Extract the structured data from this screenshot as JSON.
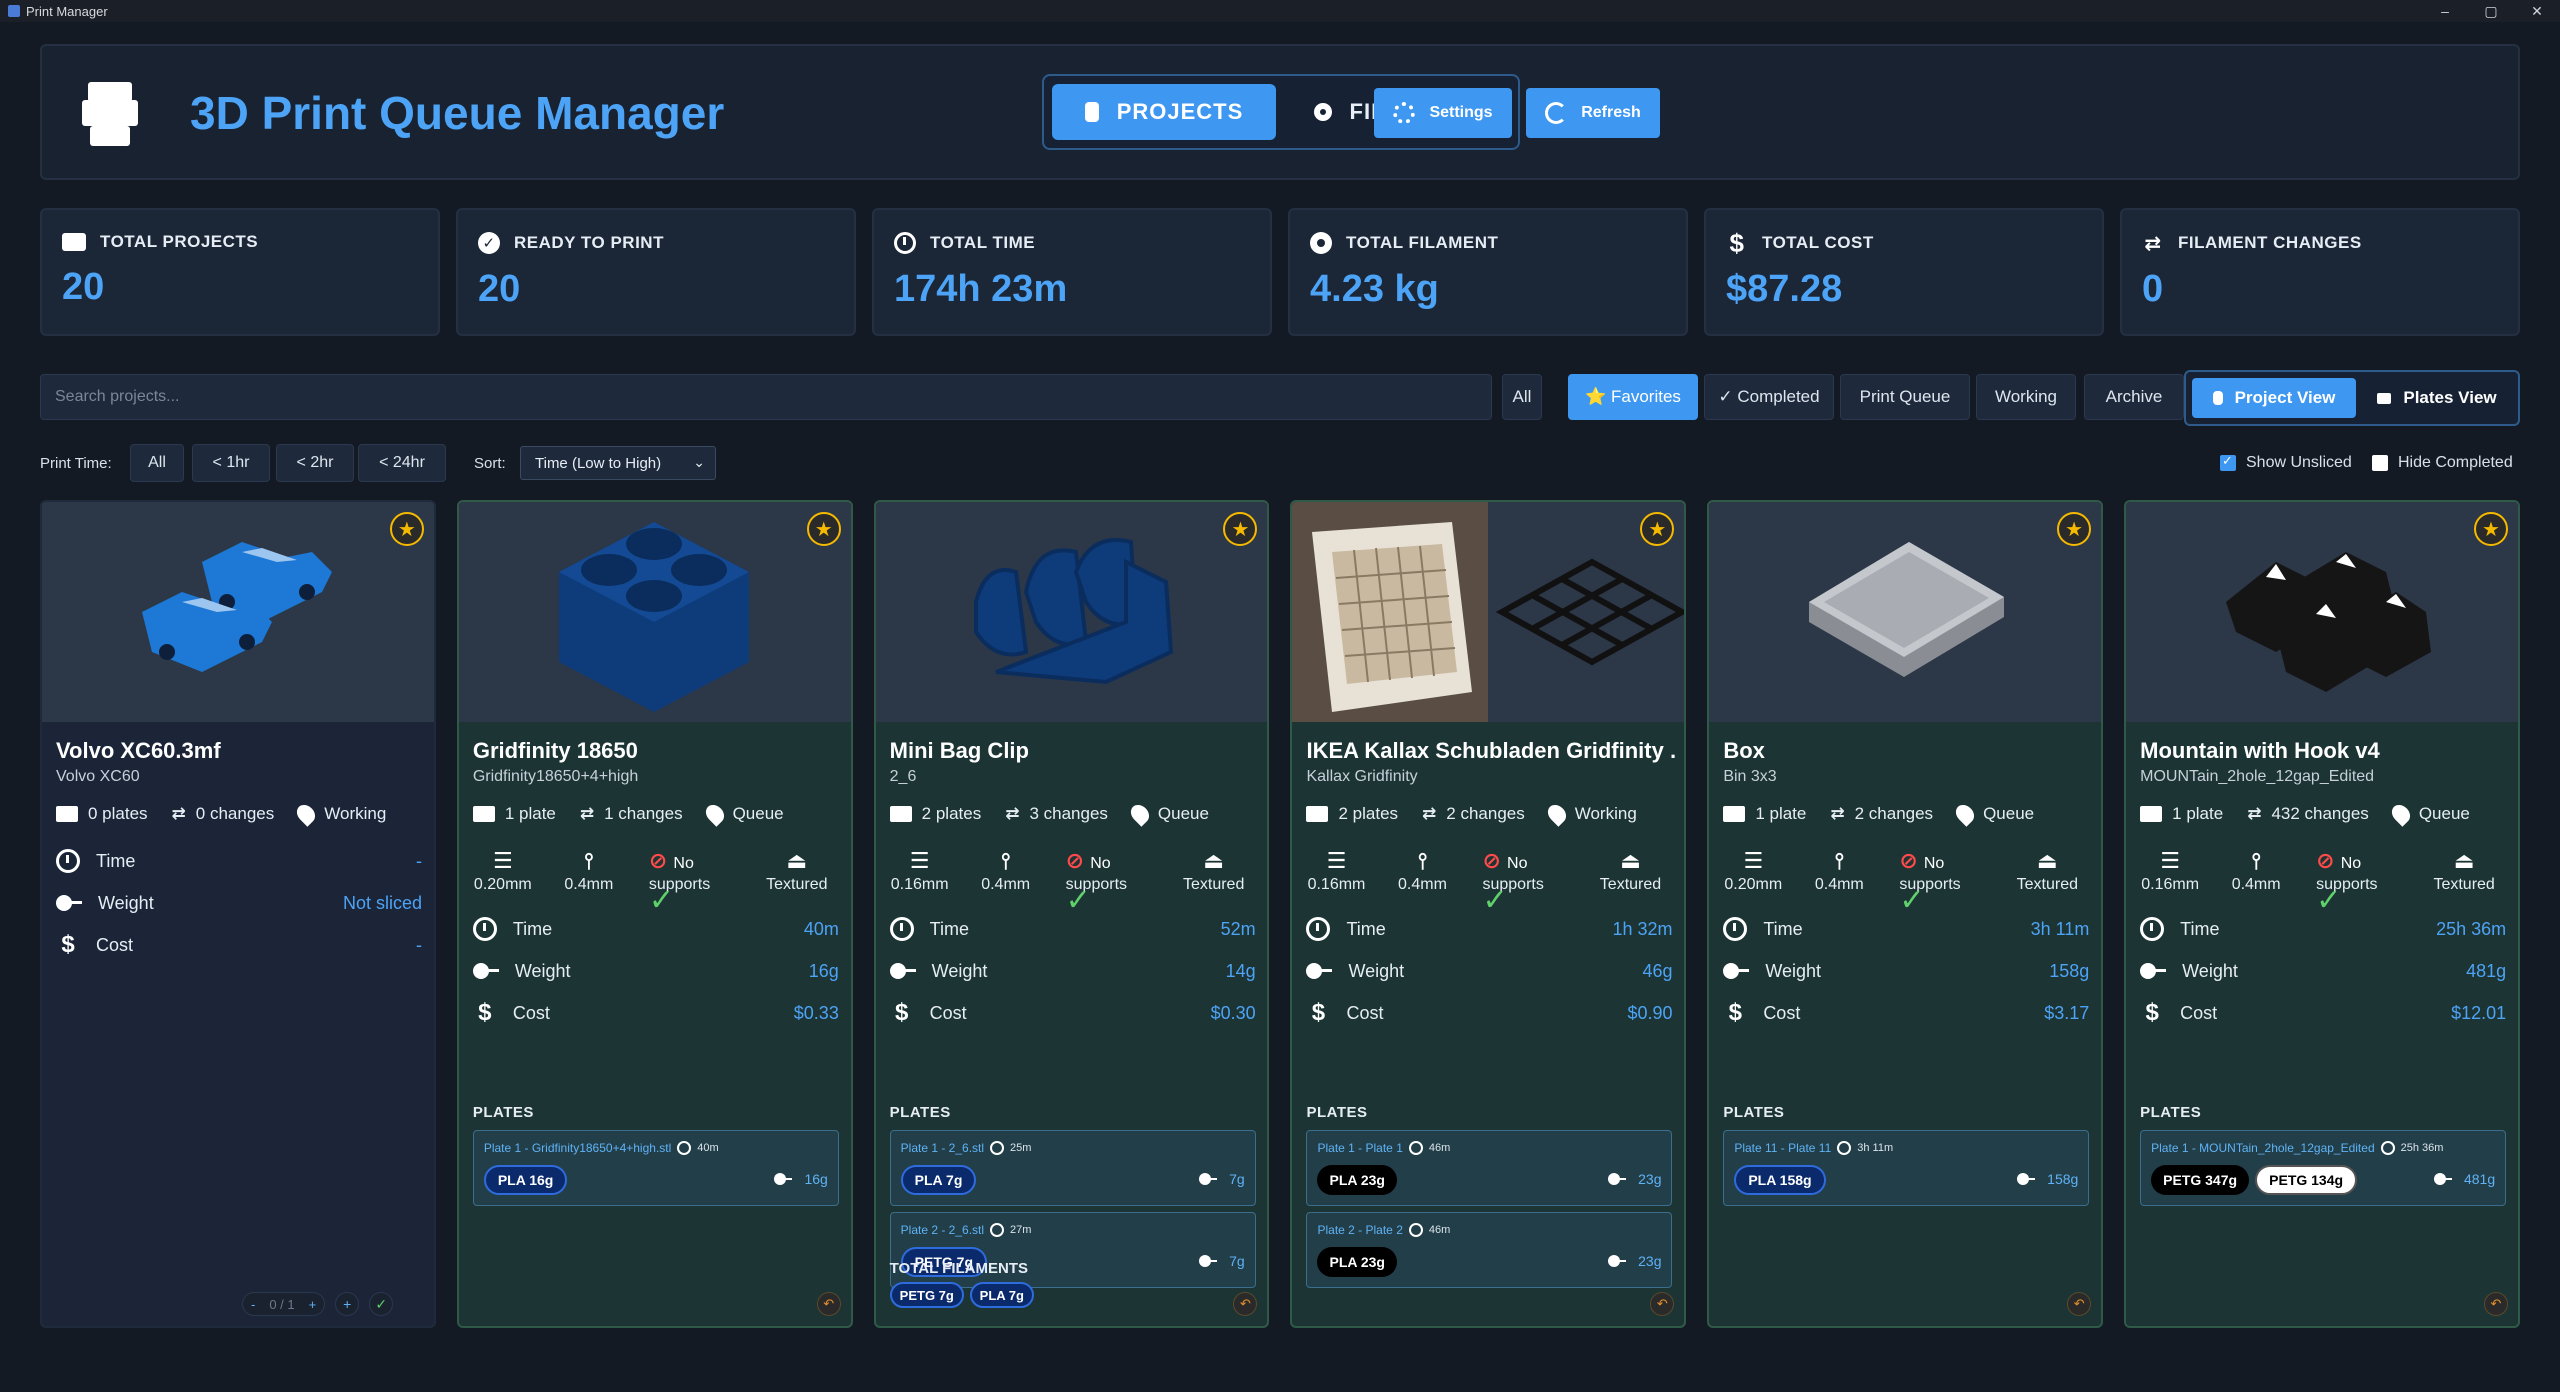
{
  "window": {
    "title": "Print Manager",
    "controls": [
      "–",
      "▢",
      "✕"
    ]
  },
  "header": {
    "title": "3D Print Queue Manager",
    "tabs": [
      {
        "label": "PROJECTS",
        "active": true
      },
      {
        "label": "FILAMENTS",
        "active": false
      }
    ],
    "settings_label": "Settings",
    "refresh_label": "Refresh"
  },
  "stats": [
    {
      "label": "TOTAL PROJECTS",
      "value": "20",
      "icon": "box-icon"
    },
    {
      "label": "READY TO PRINT",
      "value": "20",
      "icon": "check-icon"
    },
    {
      "label": "TOTAL TIME",
      "value": "174h 23m",
      "icon": "clock-icon"
    },
    {
      "label": "TOTAL FILAMENT",
      "value": "4.23 kg",
      "icon": "spool-icon"
    },
    {
      "label": "TOTAL COST",
      "value": "$87.28",
      "icon": "dollar-icon"
    },
    {
      "label": "FILAMENT CHANGES",
      "value": "0",
      "icon": "swap-icon"
    }
  ],
  "filters": {
    "search_placeholder": "Search projects...",
    "buttons": [
      "All",
      "⭐ Favorites",
      "✓ Completed",
      "Print Queue",
      "Working",
      "Archive"
    ],
    "active": "⭐ Favorites",
    "views": [
      {
        "label": "Project View",
        "active": true
      },
      {
        "label": "Plates View",
        "active": false
      }
    ]
  },
  "subfilters": {
    "print_time_label": "Print Time:",
    "print_time_options": [
      "All",
      "< 1hr",
      "< 2hr",
      "< 24hr"
    ],
    "sort_label": "Sort:",
    "sort_value": "Time (Low to High)",
    "show_unsliced_label": "Show Unsliced",
    "show_unsliced": true,
    "hide_completed_label": "Hide Completed",
    "hide_completed": false
  },
  "labels": {
    "time": "Time",
    "weight": "Weight",
    "cost": "Cost",
    "plates": "PLATES",
    "total_filaments": "TOTAL FILAMENTS",
    "no": "No",
    "supports": "supports",
    "textured": "Textured"
  },
  "cards": [
    {
      "title": "Volvo XC60.3mf",
      "subtitle": "Volvo XC60",
      "plates": "0 plates",
      "changes": "0 changes",
      "status": "Working",
      "time": "-",
      "weight": "Not sliced",
      "cost": "-",
      "counter": "0 / 1"
    },
    {
      "title": "Gridfinity 18650",
      "subtitle": "Gridfinity18650+4+high",
      "plates": "1 plate",
      "changes": "1 changes",
      "status": "Queue",
      "layer": "0.20mm",
      "nozzle": "0.4mm",
      "time": "40m",
      "weight": "16g",
      "cost": "$0.33",
      "plate_list": [
        {
          "name": "Plate 1 - Gridfinity18650+4+high.stl",
          "time": "40m",
          "chips": [
            {
              "label": "PLA 16g",
              "style": "blue"
            }
          ],
          "weight": "16g"
        }
      ]
    },
    {
      "title": "Mini Bag Clip",
      "subtitle": "2_6",
      "plates": "2 plates",
      "changes": "3 changes",
      "status": "Queue",
      "layer": "0.16mm",
      "nozzle": "0.4mm",
      "time": "52m",
      "weight": "14g",
      "cost": "$0.30",
      "plate_list": [
        {
          "name": "Plate 1 - 2_6.stl",
          "time": "25m",
          "chips": [
            {
              "label": "PLA 7g",
              "style": "blue"
            }
          ],
          "weight": "7g"
        },
        {
          "name": "Plate 2 - 2_6.stl",
          "time": "27m",
          "chips": [
            {
              "label": "PETG 7g",
              "style": "blue"
            }
          ],
          "weight": "7g"
        }
      ],
      "total_filaments": [
        "PETG 7g",
        "PLA 7g"
      ]
    },
    {
      "title": "IKEA Kallax Schubladen Gridfinity ...",
      "subtitle": "Kallax Gridfinity",
      "plates": "2 plates",
      "changes": "2 changes",
      "status": "Working",
      "layer": "0.16mm",
      "nozzle": "0.4mm",
      "time": "1h 32m",
      "weight": "46g",
      "cost": "$0.90",
      "plate_list": [
        {
          "name": "Plate 1 - Plate 1",
          "time": "46m",
          "chips": [
            {
              "label": "PLA 23g",
              "style": "black"
            }
          ],
          "weight": "23g"
        },
        {
          "name": "Plate 2 - Plate 2",
          "time": "46m",
          "chips": [
            {
              "label": "PLA 23g",
              "style": "black"
            }
          ],
          "weight": "23g"
        }
      ]
    },
    {
      "title": "Box",
      "subtitle": "Bin 3x3",
      "plates": "1 plate",
      "changes": "2 changes",
      "status": "Queue",
      "layer": "0.20mm",
      "nozzle": "0.4mm",
      "time": "3h 11m",
      "weight": "158g",
      "cost": "$3.17",
      "plate_list": [
        {
          "name": "Plate 11 - Plate 11",
          "time": "3h 11m",
          "chips": [
            {
              "label": "PLA 158g",
              "style": "blue"
            }
          ],
          "weight": "158g"
        }
      ]
    },
    {
      "title": "Mountain with Hook v4",
      "subtitle": "MOUNTain_2hole_12gap_Edited",
      "plates": "1 plate",
      "changes": "432 changes",
      "status": "Queue",
      "layer": "0.16mm",
      "nozzle": "0.4mm",
      "time": "25h 36m",
      "weight": "481g",
      "cost": "$12.01",
      "plate_list": [
        {
          "name": "Plate 1 - MOUNTain_2hole_12gap_Edited",
          "time": "25h 36m",
          "chips": [
            {
              "label": "PETG 347g",
              "style": "black"
            },
            {
              "label": "PETG 134g",
              "style": "white"
            }
          ],
          "weight": "481g"
        }
      ]
    }
  ],
  "colors": {
    "accent": "#3e97f0",
    "title": "#4da3f5",
    "card_ready": "#1c3434",
    "card_working": "#1b2537",
    "star": "#f5b900"
  }
}
